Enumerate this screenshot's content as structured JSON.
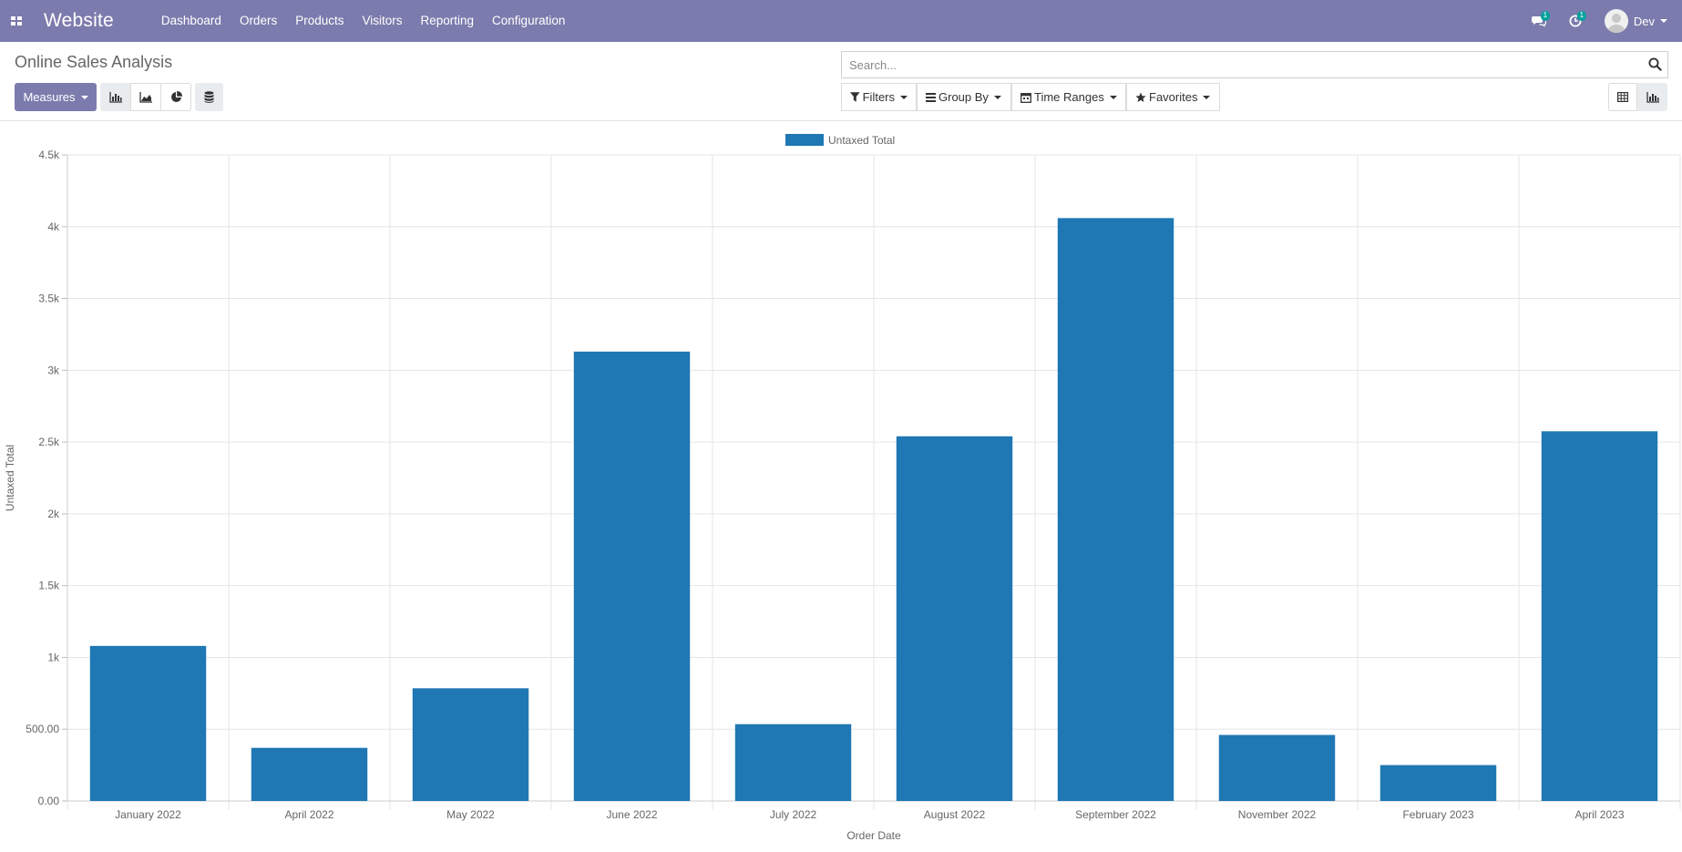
{
  "navbar": {
    "app_name": "Website",
    "menu": [
      "Dashboard",
      "Orders",
      "Products",
      "Visitors",
      "Reporting",
      "Configuration"
    ],
    "messages_badge": "1",
    "activities_badge": "1",
    "user_name": "Dev",
    "bg_color": "#7c7bad"
  },
  "control_panel": {
    "title": "Online Sales Analysis",
    "measures_label": "Measures",
    "search_placeholder": "Search...",
    "filters_label": "Filters",
    "group_by_label": "Group By",
    "time_ranges_label": "Time Ranges",
    "favorites_label": "Favorites",
    "view_icons": [
      "bar-chart-icon",
      "area-chart-icon",
      "pie-chart-icon",
      "database-icon"
    ],
    "view_switcher": [
      "pivot-view-icon",
      "graph-view-icon"
    ]
  },
  "chart_data": {
    "type": "bar",
    "categories": [
      "January 2022",
      "April 2022",
      "May 2022",
      "June 2022",
      "July 2022",
      "August 2022",
      "September 2022",
      "November 2022",
      "February 2023",
      "April 2023"
    ],
    "series": [
      {
        "name": "Untaxed Total",
        "values": [
          1080,
          370,
          785,
          3130,
          535,
          2540,
          4060,
          460,
          250,
          2575
        ],
        "color": "#1f77b4"
      }
    ],
    "yticks": [
      "0.00",
      "500.00",
      "1k",
      "1.5k",
      "2k",
      "2.5k",
      "3k",
      "3.5k",
      "4k",
      "4.5k"
    ],
    "ylim": [
      0,
      4500
    ],
    "xlabel": "Order Date",
    "ylabel": "Untaxed Total",
    "legend": "top-center",
    "grid": true
  }
}
